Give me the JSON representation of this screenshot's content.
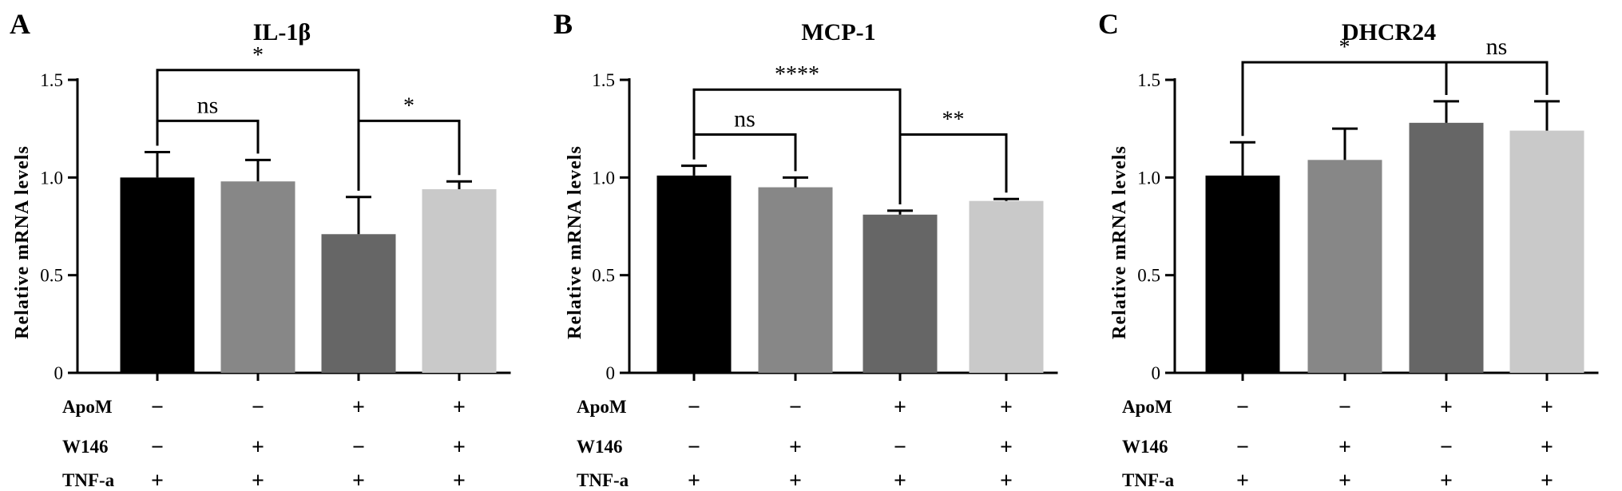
{
  "colors": {
    "bars": [
      "#000000",
      "#878787",
      "#666666",
      "#c9c9c9"
    ],
    "axis": "#000000"
  },
  "conditions": {
    "row_labels": [
      "ApoM",
      "W146",
      "TNF-a"
    ],
    "rows": [
      [
        "−",
        "−",
        "+",
        "+"
      ],
      [
        "−",
        "+",
        "−",
        "+"
      ],
      [
        "+",
        "+",
        "+",
        "+"
      ]
    ]
  },
  "chart_data": [
    {
      "type": "bar",
      "panel_letter": "A",
      "title": "IL-1β",
      "ylabel": "Relative mRNA levels",
      "xlabel": "",
      "ylim": [
        0,
        1.5
      ],
      "yticks": [
        "0",
        "0.5",
        "1.0",
        "1.5"
      ],
      "categories": [
        "ApoM− W146− TNF-a+",
        "ApoM− W146+ TNF-a+",
        "ApoM+ W146− TNF-a+",
        "ApoM+ W146+ TNF-a+"
      ],
      "values": [
        1.0,
        0.98,
        0.71,
        0.94
      ],
      "errors": [
        0.13,
        0.11,
        0.19,
        0.04
      ],
      "grid": false,
      "significance": [
        {
          "from": 0,
          "to": 2,
          "label": "*",
          "level": 1.55
        },
        {
          "from": 0,
          "to": 1,
          "label": "ns",
          "level": 1.29
        },
        {
          "from": 2,
          "to": 3,
          "label": "*",
          "level": 1.29
        }
      ]
    },
    {
      "type": "bar",
      "panel_letter": "B",
      "title": "MCP-1",
      "ylabel": "Relative mRNA levels",
      "xlabel": "",
      "ylim": [
        0,
        1.5
      ],
      "yticks": [
        "0",
        "0.5",
        "1.0",
        "1.5"
      ],
      "categories": [
        "ApoM− W146− TNF-a+",
        "ApoM− W146+ TNF-a+",
        "ApoM+ W146− TNF-a+",
        "ApoM+ W146+ TNF-a+"
      ],
      "values": [
        1.01,
        0.95,
        0.81,
        0.88
      ],
      "errors": [
        0.05,
        0.05,
        0.02,
        0.01
      ],
      "grid": false,
      "significance": [
        {
          "from": 0,
          "to": 2,
          "label": "****",
          "level": 1.45
        },
        {
          "from": 0,
          "to": 1,
          "label": "ns",
          "level": 1.22
        },
        {
          "from": 2,
          "to": 3,
          "label": "**",
          "level": 1.22
        }
      ]
    },
    {
      "type": "bar",
      "panel_letter": "C",
      "title": "DHCR24",
      "ylabel": "Relative mRNA levels",
      "xlabel": "",
      "ylim": [
        0,
        1.5
      ],
      "yticks": [
        "0",
        "0.5",
        "1.0",
        "1.5"
      ],
      "categories": [
        "ApoM− W146− TNF-a+",
        "ApoM− W146+ TNF-a+",
        "ApoM+ W146− TNF-a+",
        "ApoM+ W146+ TNF-a+"
      ],
      "values": [
        1.01,
        1.09,
        1.28,
        1.24
      ],
      "errors": [
        0.17,
        0.16,
        0.11,
        0.15
      ],
      "grid": false,
      "significance": [
        {
          "from": 0,
          "to": 2,
          "label": "*",
          "level": 1.59
        },
        {
          "from": 2,
          "to": 3,
          "label": "ns",
          "level": 1.59
        }
      ]
    }
  ]
}
